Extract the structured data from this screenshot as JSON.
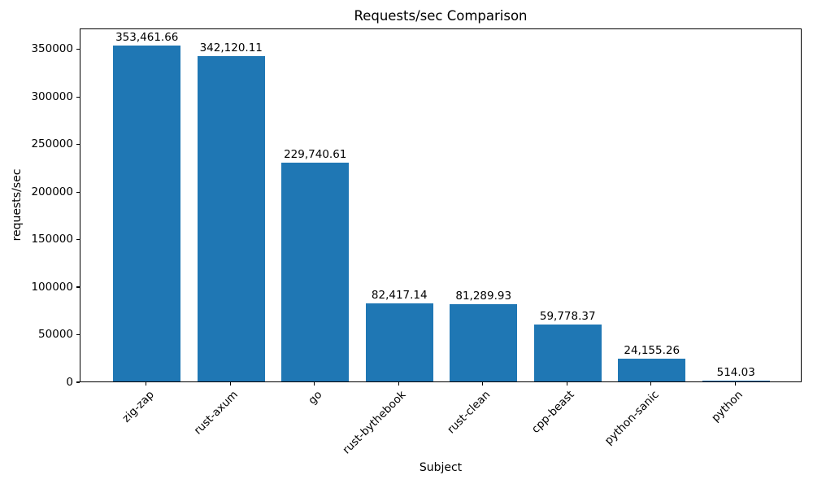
{
  "chart_data": {
    "type": "bar",
    "title": "Requests/sec Comparison",
    "xlabel": "Subject",
    "ylabel": "requests/sec",
    "categories": [
      "zig-zap",
      "rust-axum",
      "go",
      "rust-bythebook",
      "rust-clean",
      "cpp-beast",
      "python-sanic",
      "python"
    ],
    "values": [
      353461.66,
      342120.11,
      229740.61,
      82417.14,
      81289.93,
      59778.37,
      24155.26,
      514.03
    ],
    "bar_labels": [
      "353,461.66",
      "342,120.11",
      "229,740.61",
      "82,417.14",
      "81,289.93",
      "59,778.37",
      "24,155.26",
      "514.03"
    ],
    "yticks": [
      0,
      50000,
      100000,
      150000,
      200000,
      250000,
      300000,
      350000
    ],
    "ylim": [
      0,
      372000
    ],
    "bar_color": "#1f77b4",
    "grid": false,
    "legend_position": "none",
    "xtick_rotation_deg": 45
  }
}
